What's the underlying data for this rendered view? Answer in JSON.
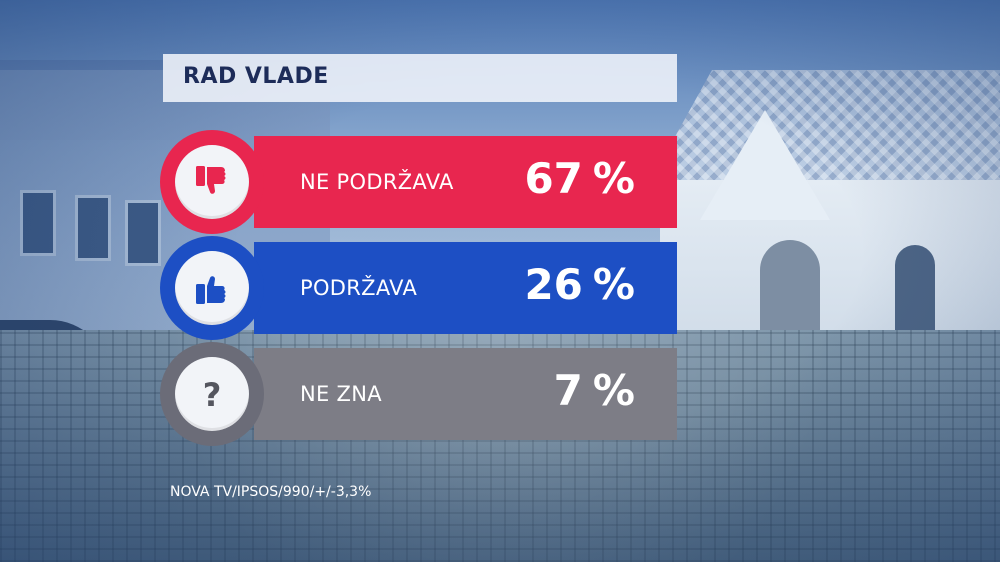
{
  "title": "RAD VLADE",
  "chart_data": {
    "type": "bar",
    "title": "RAD VLADE",
    "categories": [
      "NE PODRŽAVA",
      "PODRŽAVA",
      "NE ZNA"
    ],
    "values": [
      67,
      26,
      7
    ],
    "unit": "%",
    "colors": [
      "#e8264f",
      "#1d4fc4",
      "#7d7d86"
    ],
    "icons": [
      "thumbs-down-icon",
      "thumbs-up-icon",
      "question-mark-icon"
    ]
  },
  "rows": [
    {
      "label": "NE PODRŽAVA",
      "value": "67",
      "unit": "%",
      "icon": "thumbs-down-icon",
      "color": "#e8264f",
      "ring": "#e8264f",
      "glyph_color": "#e8264f"
    },
    {
      "label": "PODRŽAVA",
      "value": "26",
      "unit": "%",
      "icon": "thumbs-up-icon",
      "color": "#1d4fc4",
      "ring": "#1d4fc4",
      "glyph_color": "#1d4fc4"
    },
    {
      "label": "NE ZNA",
      "value": "7",
      "unit": "%",
      "icon": "question-mark-icon",
      "color": "#7d7d86",
      "ring": "#6b6c78",
      "glyph_color": "#55565f"
    }
  ],
  "footnote": "NOVA TV/IPSOS/990/+/-3,3%"
}
